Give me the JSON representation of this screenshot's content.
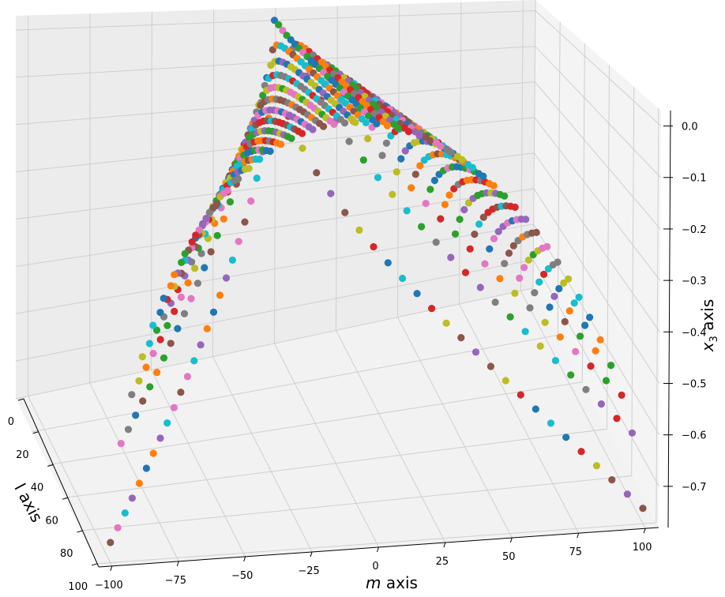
{
  "chart_data": {
    "type": "scatter",
    "projection": "3d",
    "title": "",
    "xlabel": "m axis",
    "xlabel_italic_part": "m",
    "xlabel_suffix": " axis",
    "ylabel": "l axis",
    "zlabel": "x3 axis",
    "zlabel_base": "x",
    "zlabel_sub": "3",
    "zlabel_suffix": " axis",
    "x_ticks": [
      "−100",
      "−75",
      "−50",
      "−25",
      "0",
      "25",
      "50",
      "75",
      "100"
    ],
    "x_tick_values": [
      -100,
      -75,
      -50,
      -25,
      0,
      25,
      50,
      75,
      100
    ],
    "y_ticks": [
      "0",
      "20",
      "40",
      "60",
      "80",
      "100"
    ],
    "y_tick_values": [
      0,
      20,
      40,
      60,
      80,
      100
    ],
    "z_ticks": [
      "0.0",
      "−0.1",
      "−0.2",
      "−0.3",
      "−0.4",
      "−0.5",
      "−0.6",
      "−0.7"
    ],
    "z_tick_values": [
      0.0,
      -0.1,
      -0.2,
      -0.3,
      -0.4,
      -0.5,
      -0.6,
      -0.7
    ],
    "xlim": [
      -105,
      105
    ],
    "ylim": [
      0,
      102
    ],
    "zlim": [
      -0.78,
      0.03
    ],
    "grid": true,
    "legend": "none",
    "marker": "filled circle",
    "description_of_data": "Each curve is a fixed l; points at m from -l to l; x3 value follows a parabola-like arch peaking near 0 at the left and decaying toward about -0.75 at the front edges.",
    "series_rule": {
      "l_values": [
        0,
        4,
        8,
        12,
        16,
        20,
        24,
        28,
        32,
        36,
        40,
        44,
        48,
        52,
        56,
        60,
        64,
        68,
        72,
        76,
        80,
        84,
        88,
        92,
        96,
        100
      ],
      "m_step": 4
    },
    "colors": [
      "#1f77b4",
      "#ff7f0e",
      "#2ca02c",
      "#d62728",
      "#9467bd",
      "#8c564b",
      "#e377c2",
      "#7f7f7f",
      "#bcbd22",
      "#17becf"
    ]
  },
  "pane_colors": {
    "left": "#ececec",
    "right": "#f4f4f4",
    "floor": "#f2f2f2",
    "grid": "#cfcfcf",
    "axis_line": "#000000"
  }
}
